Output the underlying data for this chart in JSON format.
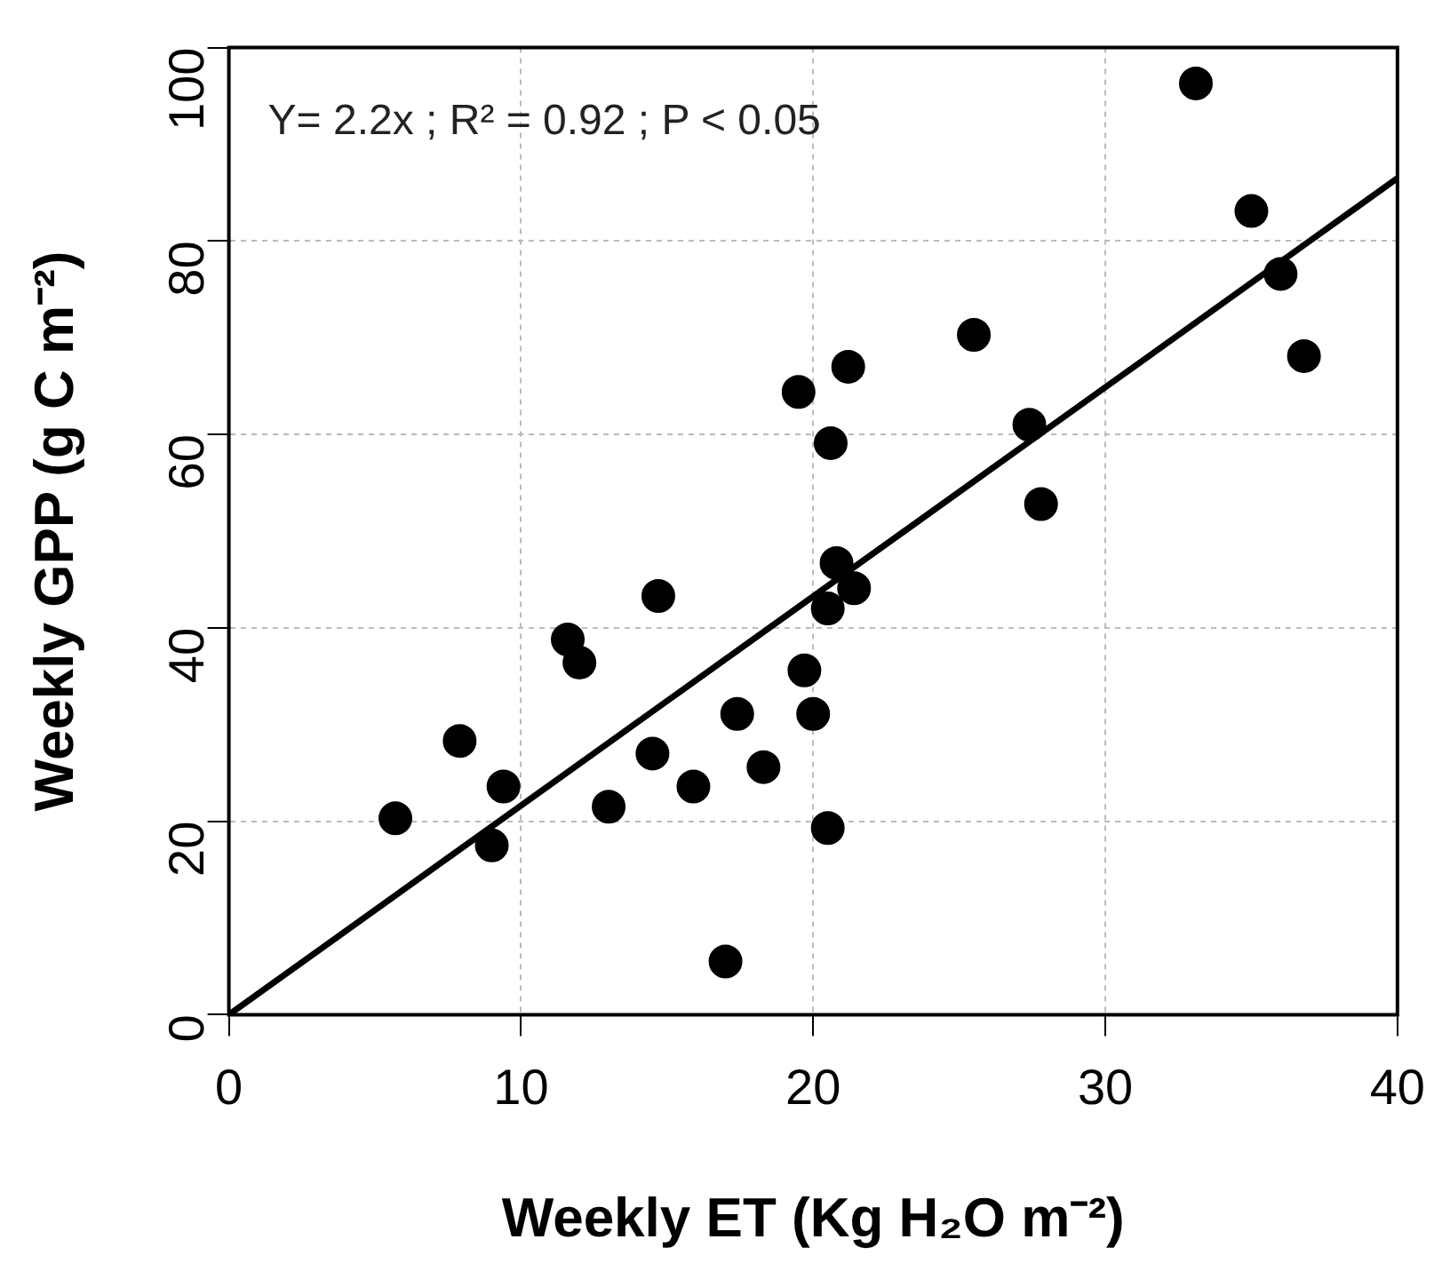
{
  "chart_data": {
    "type": "scatter",
    "xlabel": "Weekly ET (Kg H₂O m⁻²)",
    "ylabel": "Weekly GPP (g C m⁻²)",
    "annotations": [
      "Y= 2.2x ; R² = 0.92 ; P < 0.05"
    ],
    "x": [
      5.7,
      7.9,
      9.0,
      9.4,
      11.6,
      12.0,
      13.0,
      14.5,
      14.7,
      15.9,
      17.0,
      17.4,
      18.3,
      19.5,
      19.7,
      20.0,
      20.5,
      20.5,
      20.6,
      20.8,
      21.2,
      21.4,
      25.5,
      27.4,
      27.8,
      33.1,
      35.0,
      36.0,
      36.8
    ],
    "series": [
      {
        "type": "scatter",
        "color": "#000000",
        "values": [
          20.3,
          28.3,
          17.5,
          23.6,
          38.8,
          36.4,
          21.5,
          27,
          43.3,
          23.6,
          5.5,
          31.1,
          25.6,
          64.4,
          35.6,
          31.1,
          19.3,
          42,
          59.1,
          46.7,
          67,
          44.1,
          70.3,
          61,
          52.8,
          96.3,
          83.1,
          76.6,
          68.1
        ]
      },
      {
        "type": "line",
        "color": "#000000",
        "x": [
          0,
          40
        ],
        "values": [
          0,
          86.5
        ],
        "marker": "none",
        "line_style": "solid"
      }
    ],
    "xlim": [
      0,
      40
    ],
    "ylim": [
      0,
      100
    ],
    "xticks": [
      0,
      10,
      20,
      30,
      40
    ],
    "yticks": [
      0,
      20,
      40,
      60,
      80,
      100
    ],
    "grid": true,
    "marker": "circle",
    "legend": false
  }
}
